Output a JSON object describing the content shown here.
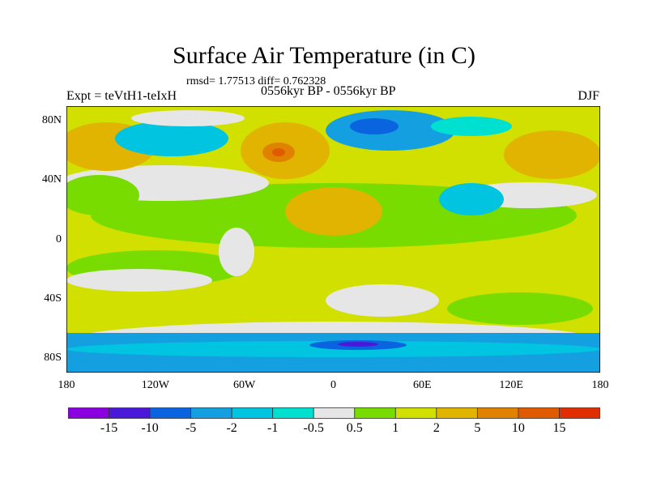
{
  "title": "Surface Air Temperature (in C)",
  "stats": "rmsd= 1.77513 diff= 0.762328",
  "experiment": "Expt = teVtH1-teIxH",
  "period": "0556kyr BP - 0556kyr BP",
  "season": "DJF",
  "chart_data": {
    "type": "heatmap",
    "title": "Surface Air Temperature (in C)",
    "x_ticks": [
      {
        "label": "180",
        "lon": -180
      },
      {
        "label": "120W",
        "lon": -120
      },
      {
        "label": "60W",
        "lon": -60
      },
      {
        "label": "0",
        "lon": 0
      },
      {
        "label": "60E",
        "lon": 60
      },
      {
        "label": "120E",
        "lon": 120
      },
      {
        "label": "180",
        "lon": 180
      }
    ],
    "y_ticks": [
      {
        "label": "80N",
        "lat": 80
      },
      {
        "label": "40N",
        "lat": 40
      },
      {
        "label": "0",
        "lat": 0
      },
      {
        "label": "40S",
        "lat": -40
      },
      {
        "label": "80S",
        "lat": -80
      }
    ],
    "xlim": [
      -180,
      180
    ],
    "ylim": [
      -90,
      90
    ],
    "colorbar": {
      "labels": [
        "-15",
        "-10",
        "-5",
        "-2",
        "-1",
        "-0.5",
        "0.5",
        "1",
        "2",
        "5",
        "10",
        "15"
      ],
      "colors": [
        "#8a00e0",
        "#4a18d8",
        "#0a64e0",
        "#14a0e0",
        "#00c4e0",
        "#00e0d0",
        "#e6e6e6",
        "#78dc00",
        "#d2e000",
        "#e0b400",
        "#e08200",
        "#e05a00",
        "#e02e00"
      ]
    }
  }
}
